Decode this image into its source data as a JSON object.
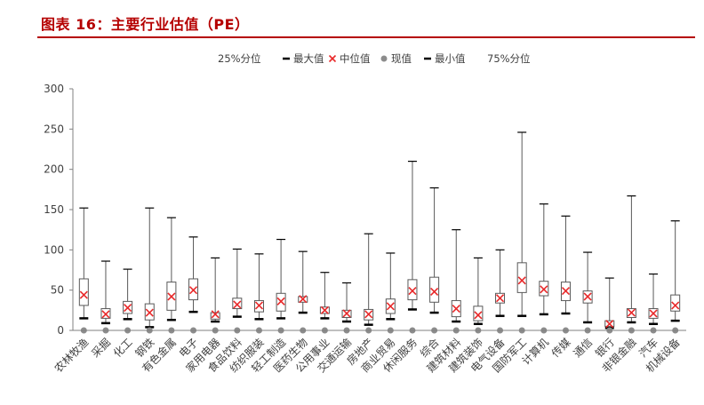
{
  "title": "图表 16：主要行业估值（PE）",
  "colors": {
    "title": "#b50000",
    "box": "#595959",
    "median": "#e8292a",
    "current": "#8c8c8c",
    "whisker": "#000000",
    "axis": "#808080"
  },
  "chart_data": {
    "type": "box",
    "title": "",
    "xlabel": "",
    "ylabel": "",
    "ylim": [
      0,
      300
    ],
    "yticks": [
      0,
      50,
      100,
      150,
      200,
      250,
      300
    ],
    "grid": false,
    "legend_position": "top",
    "legend": [
      {
        "label": "25%分位",
        "marker": "none"
      },
      {
        "label": "最大值",
        "marker": "dash"
      },
      {
        "label": "中位值",
        "marker": "x"
      },
      {
        "label": "现值",
        "marker": "dot"
      },
      {
        "label": "最小值",
        "marker": "dash"
      },
      {
        "label": "75%分位",
        "marker": "none"
      }
    ],
    "categories": [
      "农林牧渔",
      "采掘",
      "化工",
      "钢铁",
      "有色金属",
      "电子",
      "家用电器",
      "食品饮料",
      "纺织服装",
      "轻工制造",
      "医药生物",
      "公用事业",
      "交通运输",
      "房地产",
      "商业贸易",
      "休闲服务",
      "综合",
      "建筑材料",
      "建筑装饰",
      "电气设备",
      "国防军工",
      "计算机",
      "传媒",
      "通信",
      "银行",
      "非银金融",
      "汽车",
      "机械设备"
    ],
    "max": [
      152,
      86,
      76,
      152,
      140,
      116,
      90,
      101,
      95,
      113,
      98,
      72,
      59,
      120,
      96,
      210,
      177,
      125,
      90,
      100,
      246,
      157,
      142,
      97,
      65,
      167,
      70,
      136
    ],
    "q3": [
      64,
      27,
      36,
      33,
      60,
      64,
      22,
      40,
      37,
      46,
      42,
      29,
      25,
      26,
      39,
      63,
      66,
      37,
      30,
      46,
      84,
      61,
      60,
      49,
      12,
      27,
      27,
      44
    ],
    "median": [
      44,
      20,
      28,
      22,
      42,
      50,
      20,
      32,
      31,
      36,
      39,
      25,
      21,
      20,
      30,
      49,
      48,
      27,
      19,
      40,
      62,
      51,
      49,
      42,
      8,
      22,
      21,
      31
    ],
    "q1": [
      31,
      15,
      21,
      13,
      25,
      38,
      14,
      27,
      23,
      24,
      35,
      21,
      16,
      13,
      21,
      38,
      35,
      17,
      12,
      34,
      47,
      43,
      37,
      34,
      5,
      16,
      15,
      24
    ],
    "min": [
      15,
      9,
      14,
      4,
      13,
      23,
      11,
      17,
      14,
      15,
      22,
      15,
      11,
      7,
      14,
      26,
      22,
      11,
      8,
      18,
      18,
      20,
      21,
      10,
      3,
      10,
      8,
      12
    ],
    "current": [
      0,
      0,
      0,
      0,
      0,
      0,
      0,
      0,
      0,
      0,
      0,
      0,
      0,
      0,
      0,
      0,
      0,
      0,
      0,
      0,
      0,
      0,
      0,
      0,
      0,
      0,
      0,
      0
    ]
  }
}
